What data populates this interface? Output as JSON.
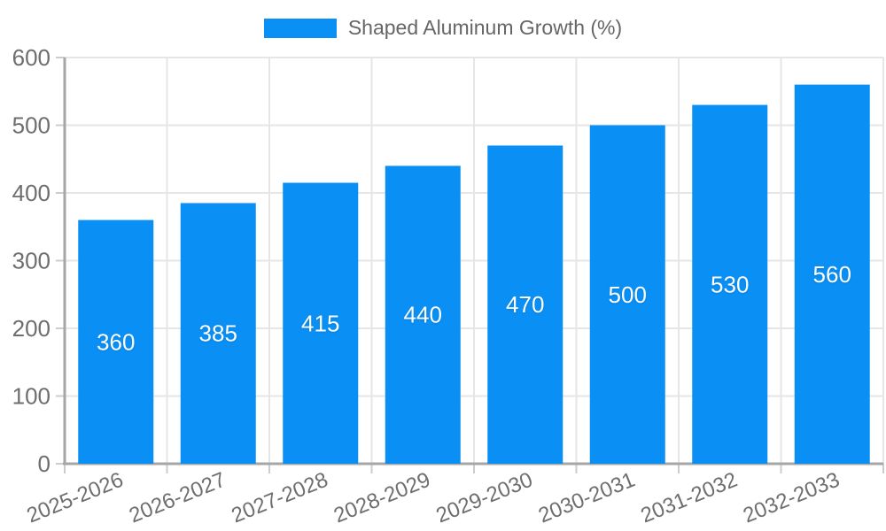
{
  "legend": {
    "label": "Shaped Aluminum Growth (%)"
  },
  "chart_data": {
    "type": "bar",
    "title": "",
    "xlabel": "",
    "ylabel": "",
    "categories": [
      "2025-2026",
      "2026-2027",
      "2027-2028",
      "2028-2029",
      "2029-2030",
      "2030-2031",
      "2031-2032",
      "2032-2033"
    ],
    "values": [
      360,
      385,
      415,
      440,
      470,
      500,
      530,
      560
    ],
    "series_label": "Shaped Aluminum Growth (%)",
    "ylim": [
      0,
      600
    ],
    "yticks": [
      0,
      100,
      200,
      300,
      400,
      500,
      600
    ],
    "grid": true,
    "legend_position": "top",
    "x_label_rotation": -22,
    "colors": {
      "bar": "#0A8FF5",
      "bar_value_label": "#ffffff",
      "axis_text": "#6e6e6e",
      "gridline": "#e6e6e6",
      "axis_line": "#a6a6a6",
      "tick_mark": "#cccccc",
      "background": "#ffffff"
    }
  }
}
